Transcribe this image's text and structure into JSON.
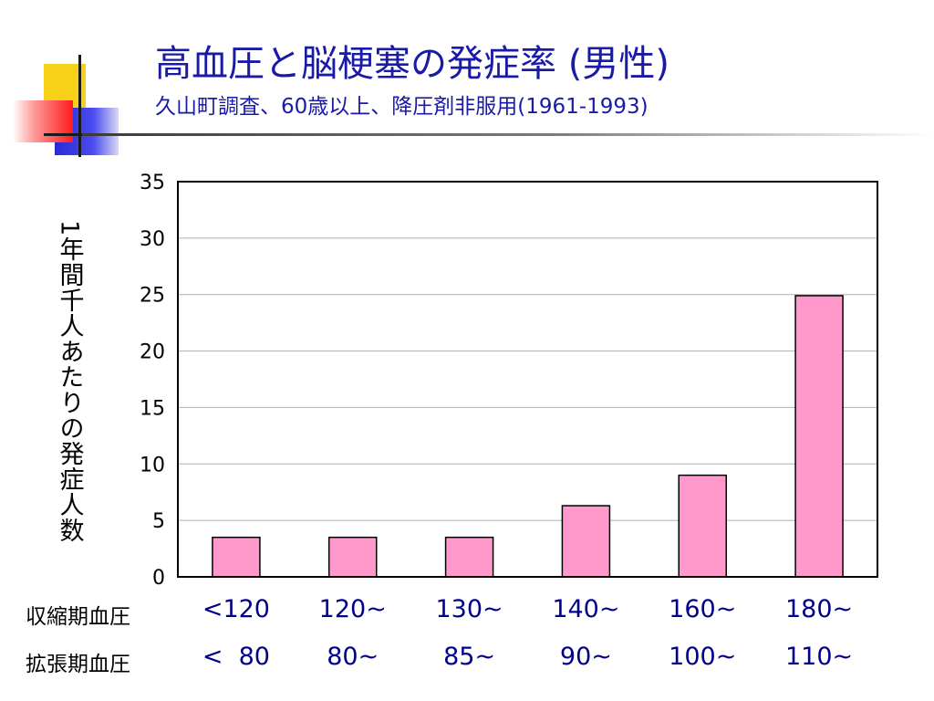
{
  "slide": {
    "title": "高血圧と脳梗塞の発症率 (男性)",
    "subtitle": "久山町調査、60歳以上、降圧剤非服用(1961-1993)"
  },
  "chart_data": {
    "type": "bar",
    "ylabel": "1年間千人あたりの発症人数",
    "ylim": [
      0,
      35
    ],
    "yticks": [
      "0",
      "5",
      "10",
      "15",
      "20",
      "25",
      "30",
      "35"
    ],
    "grid": true,
    "bar_color": "#ff99cc",
    "row_labels": [
      "収縮期血圧",
      "拡張期血圧"
    ],
    "categories": [
      {
        "systolic": "<120",
        "diastolic": "<  80"
      },
      {
        "systolic": "120~",
        "diastolic": "80~"
      },
      {
        "systolic": "130~",
        "diastolic": "85~"
      },
      {
        "systolic": "140~",
        "diastolic": "90~"
      },
      {
        "systolic": "160~",
        "diastolic": "100~"
      },
      {
        "systolic": "180~",
        "diastolic": "110~"
      }
    ],
    "values": [
      3.5,
      3.5,
      3.5,
      6.3,
      9.0,
      24.9
    ]
  }
}
